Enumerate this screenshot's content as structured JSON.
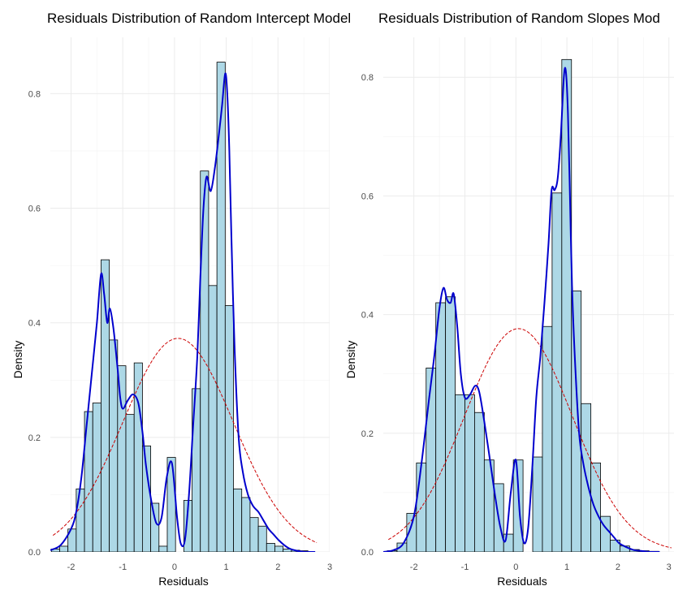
{
  "chart_data": [
    {
      "type": "bar",
      "title": "Residuals Distribution of Random Intercept Model",
      "xlabel": "Residuals",
      "ylabel": "Density",
      "xlim": [
        -2.4,
        3.0
      ],
      "ylim": [
        0,
        0.87
      ],
      "x_ticks": [
        "-2",
        "-1",
        "0",
        "1",
        "2",
        "3"
      ],
      "y_ticks": [
        "0.0",
        "0.2",
        "0.4",
        "0.6",
        "0.8"
      ],
      "grid": true,
      "colors": {
        "bars": "#add8e6",
        "bar_edge": "#000000",
        "density": "#0000cd",
        "normal": "#cc0000"
      },
      "histogram": {
        "bin_width": 0.16,
        "bin_starts": [
          -2.38,
          -2.22,
          -2.06,
          -1.9,
          -1.74,
          -1.58,
          -1.42,
          -1.26,
          -1.1,
          -0.94,
          -0.78,
          -0.62,
          -0.46,
          -0.3,
          -0.14,
          0.02,
          0.18,
          0.34,
          0.5,
          0.66,
          0.82,
          0.98,
          1.14,
          1.3,
          1.46,
          1.62,
          1.78,
          1.94,
          2.1,
          2.26,
          2.42,
          2.58
        ],
        "values": [
          0.005,
          0.01,
          0.04,
          0.11,
          0.245,
          0.26,
          0.51,
          0.37,
          0.325,
          0.24,
          0.33,
          0.185,
          0.085,
          0.01,
          0.165,
          0.0,
          0.09,
          0.285,
          0.665,
          0.465,
          0.855,
          0.43,
          0.11,
          0.095,
          0.06,
          0.045,
          0.015,
          0.01,
          0.005,
          0.003,
          0.002,
          0.0
        ]
      },
      "density_curve": {
        "x": [
          -2.4,
          -2.2,
          -2.0,
          -1.9,
          -1.8,
          -1.7,
          -1.6,
          -1.5,
          -1.42,
          -1.36,
          -1.3,
          -1.25,
          -1.18,
          -1.1,
          -1.05,
          -1.0,
          -0.9,
          -0.8,
          -0.7,
          -0.62,
          -0.55,
          -0.45,
          -0.35,
          -0.25,
          -0.15,
          -0.05,
          0.05,
          0.12,
          0.2,
          0.28,
          0.36,
          0.44,
          0.5,
          0.56,
          0.62,
          0.7,
          0.78,
          0.86,
          0.92,
          0.98,
          1.02,
          1.06,
          1.1,
          1.16,
          1.24,
          1.32,
          1.42,
          1.52,
          1.62,
          1.72,
          1.82,
          1.92,
          2.02,
          2.12,
          2.22,
          2.32,
          2.42,
          2.52,
          2.62,
          2.72
        ],
        "y": [
          0.003,
          0.012,
          0.04,
          0.07,
          0.13,
          0.22,
          0.31,
          0.4,
          0.485,
          0.45,
          0.4,
          0.425,
          0.39,
          0.32,
          0.27,
          0.25,
          0.265,
          0.275,
          0.26,
          0.21,
          0.15,
          0.09,
          0.05,
          0.06,
          0.13,
          0.155,
          0.06,
          0.015,
          0.02,
          0.1,
          0.22,
          0.34,
          0.48,
          0.6,
          0.655,
          0.63,
          0.67,
          0.73,
          0.78,
          0.835,
          0.8,
          0.7,
          0.55,
          0.36,
          0.2,
          0.14,
          0.1,
          0.08,
          0.07,
          0.055,
          0.04,
          0.03,
          0.02,
          0.012,
          0.006,
          0.003,
          0.001,
          0.0,
          0.0,
          0.0
        ]
      },
      "normal_curve": {
        "mean": 0.07,
        "sd": 1.07,
        "x_from": -2.35,
        "x_to": 2.75
      }
    },
    {
      "type": "bar",
      "title": "Residuals Distribution of Random Slopes Mod",
      "xlabel": "Residuals",
      "ylabel": "Density",
      "xlim": [
        -2.6,
        3.1
      ],
      "ylim": [
        0,
        0.84
      ],
      "x_ticks": [
        "-2",
        "-1",
        "0",
        "1",
        "2",
        "3"
      ],
      "y_ticks": [
        "0.0",
        "0.2",
        "0.4",
        "0.6",
        "0.8"
      ],
      "grid": true,
      "colors": {
        "bars": "#add8e6",
        "bar_edge": "#000000",
        "density": "#0000cd",
        "normal": "#cc0000"
      },
      "histogram": {
        "bin_width": 0.19,
        "bin_starts": [
          -2.52,
          -2.33,
          -2.14,
          -1.95,
          -1.76,
          -1.57,
          -1.38,
          -1.19,
          -1.0,
          -0.81,
          -0.62,
          -0.43,
          -0.24,
          -0.05,
          0.14,
          0.33,
          0.52,
          0.71,
          0.9,
          1.09,
          1.28,
          1.47,
          1.66,
          1.85,
          2.04,
          2.23,
          2.42,
          2.61,
          2.8
        ],
        "values": [
          0.002,
          0.015,
          0.065,
          0.15,
          0.31,
          0.42,
          0.43,
          0.265,
          0.265,
          0.235,
          0.155,
          0.115,
          0.03,
          0.155,
          0.0,
          0.16,
          0.38,
          0.605,
          0.83,
          0.44,
          0.25,
          0.15,
          0.06,
          0.02,
          0.01,
          0.004,
          0.002,
          0.001,
          0.0
        ]
      },
      "density_curve": {
        "x": [
          -2.6,
          -2.4,
          -2.2,
          -2.0,
          -1.85,
          -1.7,
          -1.6,
          -1.5,
          -1.42,
          -1.35,
          -1.28,
          -1.22,
          -1.15,
          -1.08,
          -1.0,
          -0.9,
          -0.8,
          -0.72,
          -0.62,
          -0.5,
          -0.4,
          -0.3,
          -0.2,
          -0.1,
          0.0,
          0.08,
          0.16,
          0.24,
          0.32,
          0.4,
          0.48,
          0.56,
          0.64,
          0.7,
          0.76,
          0.82,
          0.88,
          0.94,
          0.98,
          1.02,
          1.06,
          1.1,
          1.16,
          1.24,
          1.32,
          1.42,
          1.52,
          1.62,
          1.72,
          1.82,
          1.92,
          2.02,
          2.12,
          2.22,
          2.32,
          2.42,
          2.52,
          2.62,
          2.72,
          2.82
        ],
        "y": [
          0.0,
          0.003,
          0.015,
          0.06,
          0.15,
          0.26,
          0.33,
          0.41,
          0.445,
          0.425,
          0.42,
          0.435,
          0.38,
          0.3,
          0.26,
          0.265,
          0.28,
          0.27,
          0.22,
          0.15,
          0.09,
          0.04,
          0.02,
          0.1,
          0.155,
          0.06,
          0.015,
          0.04,
          0.14,
          0.26,
          0.33,
          0.42,
          0.52,
          0.61,
          0.61,
          0.63,
          0.7,
          0.8,
          0.81,
          0.74,
          0.6,
          0.45,
          0.32,
          0.2,
          0.15,
          0.11,
          0.08,
          0.06,
          0.045,
          0.035,
          0.025,
          0.015,
          0.01,
          0.006,
          0.003,
          0.002,
          0.001,
          0.0,
          0.0,
          0.0
        ]
      },
      "normal_curve": {
        "mean": 0.05,
        "sd": 1.06,
        "x_from": -2.5,
        "x_to": 3.05
      }
    }
  ]
}
